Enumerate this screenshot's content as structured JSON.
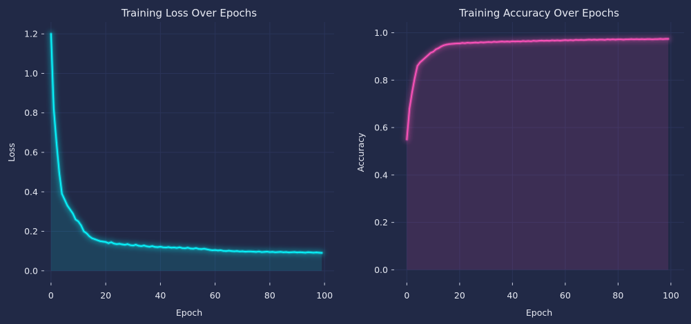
{
  "colors": {
    "background": "#212946",
    "plot_background": "#212946",
    "grid": "#2a3459",
    "text": "#e6e9f2",
    "loss_line": "#08F7FE",
    "accuracy_line": "#FE53BB"
  },
  "chart_data": [
    {
      "type": "area",
      "title": "Training Loss Over Epochs",
      "xlabel": "Epoch",
      "ylabel": "Loss",
      "xlim": [
        -2.5,
        103.5
      ],
      "ylim": [
        -0.06,
        1.26
      ],
      "xticks": [
        0,
        20,
        40,
        60,
        80,
        100
      ],
      "yticks": [
        0.0,
        0.2,
        0.4,
        0.6,
        0.8,
        1.0,
        1.2
      ],
      "grid": true,
      "series": [
        {
          "color": "#08F7FE",
          "x": [
            0,
            1,
            2,
            3,
            4,
            5,
            6,
            7,
            8,
            9,
            10,
            11,
            12,
            13,
            14,
            15,
            16,
            17,
            18,
            19,
            20,
            21,
            22,
            23,
            24,
            25,
            26,
            27,
            28,
            29,
            30,
            31,
            32,
            33,
            34,
            35,
            36,
            37,
            38,
            39,
            40,
            41,
            42,
            43,
            44,
            45,
            46,
            47,
            48,
            49,
            50,
            51,
            52,
            53,
            54,
            55,
            56,
            57,
            58,
            59,
            60,
            61,
            62,
            63,
            64,
            65,
            66,
            67,
            68,
            69,
            70,
            71,
            72,
            73,
            74,
            75,
            76,
            77,
            78,
            79,
            80,
            81,
            82,
            83,
            84,
            85,
            86,
            87,
            88,
            89,
            90,
            91,
            92,
            93,
            94,
            95,
            96,
            97,
            98,
            99
          ],
          "y": [
            1.2,
            0.82,
            0.65,
            0.5,
            0.39,
            0.36,
            0.33,
            0.31,
            0.29,
            0.26,
            0.25,
            0.23,
            0.2,
            0.19,
            0.175,
            0.165,
            0.16,
            0.155,
            0.15,
            0.148,
            0.146,
            0.14,
            0.145,
            0.138,
            0.135,
            0.137,
            0.134,
            0.132,
            0.135,
            0.13,
            0.128,
            0.132,
            0.127,
            0.125,
            0.128,
            0.124,
            0.122,
            0.125,
            0.121,
            0.12,
            0.122,
            0.119,
            0.118,
            0.12,
            0.117,
            0.118,
            0.116,
            0.119,
            0.115,
            0.114,
            0.117,
            0.113,
            0.112,
            0.115,
            0.111,
            0.11,
            0.112,
            0.109,
            0.106,
            0.104,
            0.105,
            0.103,
            0.104,
            0.101,
            0.1,
            0.102,
            0.1,
            0.099,
            0.1,
            0.098,
            0.099,
            0.097,
            0.098,
            0.098,
            0.097,
            0.096,
            0.098,
            0.095,
            0.096,
            0.097,
            0.095,
            0.096,
            0.094,
            0.095,
            0.096,
            0.094,
            0.095,
            0.093,
            0.094,
            0.095,
            0.093,
            0.094,
            0.093,
            0.092,
            0.094,
            0.093,
            0.092,
            0.093,
            0.092,
            0.091
          ]
        }
      ]
    },
    {
      "type": "area",
      "title": "Training Accuracy Over Epochs",
      "xlabel": "Epoch",
      "ylabel": "Accuracy",
      "xlim": [
        -4.8,
        105
      ],
      "ylim": [
        -0.054,
        1.045
      ],
      "xticks": [
        0,
        20,
        40,
        60,
        80,
        100
      ],
      "yticks": [
        0.0,
        0.2,
        0.4,
        0.6,
        0.8,
        1.0
      ],
      "grid": true,
      "series": [
        {
          "color": "#FE53BB",
          "x": [
            0,
            1,
            2,
            3,
            4,
            5,
            6,
            7,
            8,
            9,
            10,
            11,
            12,
            13,
            14,
            15,
            16,
            17,
            18,
            19,
            20,
            21,
            22,
            23,
            24,
            25,
            26,
            27,
            28,
            29,
            30,
            31,
            32,
            33,
            34,
            35,
            36,
            37,
            38,
            39,
            40,
            41,
            42,
            43,
            44,
            45,
            46,
            47,
            48,
            49,
            50,
            51,
            52,
            53,
            54,
            55,
            56,
            57,
            58,
            59,
            60,
            61,
            62,
            63,
            64,
            65,
            66,
            67,
            68,
            69,
            70,
            71,
            72,
            73,
            74,
            75,
            76,
            77,
            78,
            79,
            80,
            81,
            82,
            83,
            84,
            85,
            86,
            87,
            88,
            89,
            90,
            91,
            92,
            93,
            94,
            95,
            96,
            97,
            98,
            99
          ],
          "y": [
            0.55,
            0.68,
            0.75,
            0.81,
            0.86,
            0.875,
            0.885,
            0.895,
            0.905,
            0.915,
            0.92,
            0.93,
            0.935,
            0.942,
            0.947,
            0.95,
            0.952,
            0.953,
            0.954,
            0.955,
            0.955,
            0.957,
            0.956,
            0.958,
            0.957,
            0.958,
            0.959,
            0.958,
            0.96,
            0.959,
            0.96,
            0.961,
            0.96,
            0.962,
            0.961,
            0.962,
            0.963,
            0.962,
            0.963,
            0.962,
            0.964,
            0.963,
            0.964,
            0.963,
            0.965,
            0.964,
            0.965,
            0.964,
            0.966,
            0.965,
            0.966,
            0.967,
            0.966,
            0.967,
            0.966,
            0.968,
            0.967,
            0.968,
            0.967,
            0.968,
            0.969,
            0.968,
            0.969,
            0.968,
            0.97,
            0.969,
            0.97,
            0.969,
            0.97,
            0.971,
            0.97,
            0.971,
            0.97,
            0.971,
            0.971,
            0.97,
            0.972,
            0.971,
            0.972,
            0.971,
            0.972,
            0.972,
            0.971,
            0.972,
            0.972,
            0.973,
            0.972,
            0.973,
            0.972,
            0.973,
            0.972,
            0.973,
            0.973,
            0.972,
            0.973,
            0.973,
            0.974,
            0.973,
            0.974,
            0.974
          ]
        }
      ]
    }
  ]
}
